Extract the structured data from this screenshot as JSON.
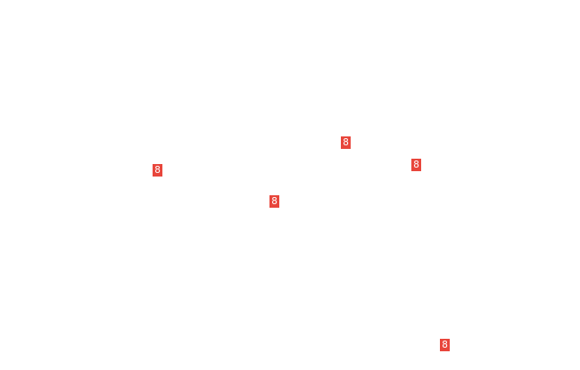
{
  "badge_color": "#e8463c",
  "badges": [
    {
      "label": "8"
    },
    {
      "label": "8"
    },
    {
      "label": "8"
    },
    {
      "label": "8"
    },
    {
      "label": "8"
    }
  ]
}
